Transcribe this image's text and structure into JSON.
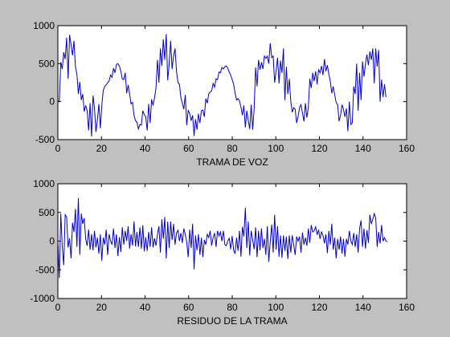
{
  "figure": {
    "background": "#c0c0c0",
    "axes_background": "#ffffff",
    "line_color": "#0000c8"
  },
  "chart_data": [
    {
      "type": "line",
      "xlabel": "TRAMA DE VOZ",
      "ylabel": "",
      "xlim": [
        0,
        160
      ],
      "ylim": [
        -500,
        1000
      ],
      "xticks": [
        0,
        20,
        40,
        60,
        80,
        100,
        120,
        140,
        160
      ],
      "yticks": [
        -500,
        0,
        500,
        1000
      ],
      "grid": false,
      "series": [
        {
          "values": [
            0,
            10,
            520,
            430,
            650,
            560,
            840,
            300,
            880,
            750,
            610,
            800,
            460,
            360,
            100,
            260,
            20,
            100,
            -130,
            -50,
            -120,
            -380,
            -20,
            -460,
            80,
            -80,
            -400,
            -240,
            -30,
            -350,
            -50,
            150,
            200,
            220,
            250,
            270,
            350,
            320,
            440,
            380,
            490,
            500,
            470,
            400,
            300,
            290,
            380,
            110,
            220,
            100,
            -30,
            -10,
            -180,
            -250,
            -270,
            -360,
            -300,
            -310,
            -120,
            -170,
            -200,
            -380,
            -30,
            -280,
            30,
            -50,
            50,
            180,
            550,
            250,
            700,
            470,
            820,
            550,
            890,
            280,
            500,
            800,
            430,
            600,
            700,
            400,
            250,
            230,
            50,
            -20,
            -100,
            90,
            -310,
            -110,
            -160,
            -250,
            -180,
            -450,
            -230,
            -370,
            -160,
            -280,
            -120,
            -110,
            -200,
            40,
            -20,
            100,
            130,
            140,
            240,
            190,
            300,
            290,
            390,
            380,
            450,
            430,
            460,
            470,
            440,
            390,
            350,
            290,
            230,
            110,
            20,
            40,
            10,
            -70,
            -180,
            -50,
            -340,
            -120,
            -250,
            -360,
            -40,
            -370,
            -100,
            450,
            200,
            550,
            420,
            520,
            430,
            600,
            570,
            600,
            500,
            770,
            580,
            600,
            250,
            400,
            580,
            240,
            540,
            380,
            700,
            20,
            460,
            100,
            300,
            10,
            -140,
            -80,
            -100,
            -280,
            -200,
            -80,
            -40,
            -150,
            -260,
            -20,
            -210,
            -80,
            300,
            180,
            380,
            270,
            400,
            230,
            420,
            380,
            470,
            350,
            560,
            400,
            480,
            360,
            270,
            110,
            200,
            90,
            -10,
            -40,
            -260,
            -180,
            -40,
            -100,
            -200,
            -90,
            -390,
            0,
            -300,
            -280,
            200,
            100,
            500,
            -120,
            380,
            20,
            530,
            330,
            500,
            620,
            480,
            660,
            550,
            700,
            240,
            700,
            460,
            680,
            0,
            290,
            60,
            230,
            60
          ],
          "x_step": 0.672
        }
      ]
    },
    {
      "type": "line",
      "xlabel": "RESIDUO DE LA TRAMA",
      "ylabel": "",
      "xlim": [
        0,
        160
      ],
      "ylim": [
        -1000,
        1000
      ],
      "xticks": [
        0,
        20,
        40,
        60,
        80,
        100,
        120,
        140,
        160
      ],
      "yticks": [
        -1000,
        -500,
        0,
        500,
        1000
      ],
      "grid": false,
      "series": [
        {
          "values": [
            0,
            -640,
            480,
            -100,
            -420,
            460,
            420,
            -110,
            50,
            -300,
            320,
            160,
            560,
            -100,
            750,
            -240,
            480,
            300,
            400,
            40,
            -80,
            200,
            -150,
            120,
            -160,
            180,
            -110,
            60,
            -220,
            120,
            -340,
            60,
            -60,
            200,
            -240,
            120,
            0,
            -60,
            220,
            -120,
            120,
            -260,
            70,
            -190,
            240,
            -60,
            180,
            0,
            260,
            -130,
            120,
            -80,
            340,
            -90,
            160,
            -100,
            240,
            -130,
            280,
            -180,
            70,
            -170,
            160,
            -100,
            240,
            -110,
            50,
            -80,
            120,
            260,
            -200,
            380,
            40,
            420,
            -300,
            340,
            -120,
            340,
            20,
            300,
            -60,
            140,
            190,
            0,
            140,
            -30,
            220,
            120,
            -20,
            -280,
            200,
            -120,
            300,
            -490,
            100,
            -160,
            120,
            -240,
            60,
            -280,
            20,
            -60,
            120,
            60,
            180,
            -80,
            60,
            140,
            -100,
            180,
            90,
            160,
            0,
            180,
            -60,
            -80,
            0,
            50,
            -140,
            90,
            -160,
            -220,
            60,
            -170,
            180,
            -270,
            250,
            80,
            580,
            -120,
            340,
            -250,
            180,
            20,
            -140,
            240,
            -280,
            180,
            -160,
            220,
            -120,
            40,
            -240,
            260,
            -360,
            -10,
            290,
            -200,
            460,
            -150,
            260,
            -270,
            100,
            -290,
            100,
            -170,
            80,
            -310,
            100,
            -200,
            100,
            -60,
            -240,
            80,
            0,
            80,
            -200,
            150,
            -60,
            60,
            -80,
            220,
            -30,
            280,
            160,
            180,
            250,
            110,
            200,
            40,
            160,
            100,
            -40,
            120,
            -210,
            180,
            -60,
            300,
            -150,
            60,
            -300,
            40,
            -150,
            80,
            -220,
            40,
            -270,
            40,
            -60,
            180,
            0,
            -60,
            140,
            -100,
            120,
            -200,
            220,
            360,
            -100,
            220,
            -130,
            190,
            -30,
            460,
            300,
            380,
            480,
            400,
            -100,
            160,
            -40,
            280,
            0,
            60,
            0,
            -10
          ],
          "x_step": 0.672
        }
      ]
    }
  ]
}
